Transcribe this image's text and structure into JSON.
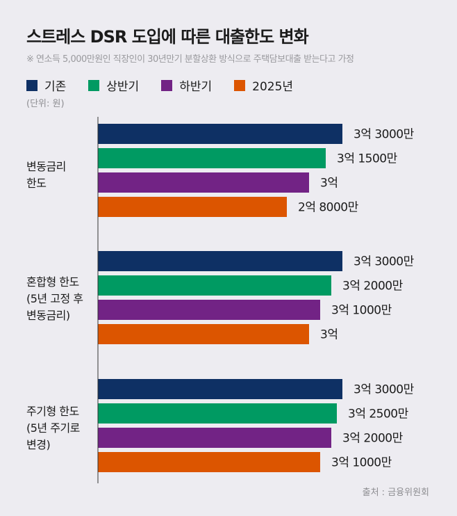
{
  "title": "스트레스 DSR 도입에 따른 대출한도 변화",
  "subtitle": "※ 연소득 5,000만원인 직장인이 30년만기 분할상환 방식으로 주택담보대출 받는다고 가정",
  "unit": "(단위: 원)",
  "source": "출처 : 금융위원회",
  "chart_data": {
    "type": "bar",
    "orientation": "horizontal",
    "title": "스트레스 DSR 도입에 따른 대출한도 변화",
    "categories": [
      "변동금리\n한도",
      "혼합형 한도\n(5년 고정 후\n변동금리)",
      "주기형 한도\n(5년 주기로\n변경)"
    ],
    "unit": "만원",
    "legend_position": "top-left",
    "grid": false,
    "series": [
      {
        "name": "기존",
        "color": "#0e3064",
        "values": [
          33000,
          33000,
          33000
        ],
        "labels": [
          "3억 3000만",
          "3억 3000만",
          "3억 3000만"
        ]
      },
      {
        "name": "상반기",
        "color": "#009a62",
        "values": [
          31500,
          32000,
          32500
        ],
        "labels": [
          "3억 1500만",
          "3억 2000만",
          "3억 2500만"
        ]
      },
      {
        "name": "하반기",
        "color": "#722385",
        "values": [
          30000,
          31000,
          32000
        ],
        "labels": [
          "3억",
          "3억 1000만",
          "3억 2000만"
        ]
      },
      {
        "name": "2025년",
        "color": "#dc5500",
        "values": [
          28000,
          30000,
          31000
        ],
        "labels": [
          "2억 8000만",
          "3억",
          "3억 1000만"
        ]
      }
    ]
  }
}
